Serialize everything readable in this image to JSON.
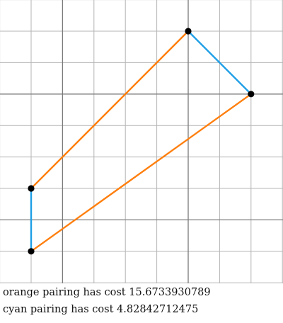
{
  "graph": {
    "grid": true,
    "x_range": [
      0,
      9
    ],
    "y_range": [
      0,
      9
    ],
    "minor_step": 1,
    "major_lines": [
      2,
      6
    ],
    "colors": {
      "minor": "#b4b4b4",
      "major": "#7a7a7a",
      "point": "#000000",
      "orange": "#ff7f0e",
      "cyan": "#1f9fe6"
    },
    "points": [
      {
        "id": "A",
        "x": 6,
        "y": 8
      },
      {
        "id": "B",
        "x": 8,
        "y": 6
      },
      {
        "id": "C",
        "x": 1,
        "y": 3
      },
      {
        "id": "D",
        "x": 1,
        "y": 1
      }
    ],
    "orange_edges": [
      [
        "A",
        "C"
      ],
      [
        "B",
        "D"
      ]
    ],
    "cyan_edges": [
      [
        "A",
        "B"
      ],
      [
        "C",
        "D"
      ]
    ]
  },
  "captions": {
    "orange": "orange pairing has cost 15.6733930789",
    "cyan": "cyan pairing has cost 4.82842712475"
  }
}
